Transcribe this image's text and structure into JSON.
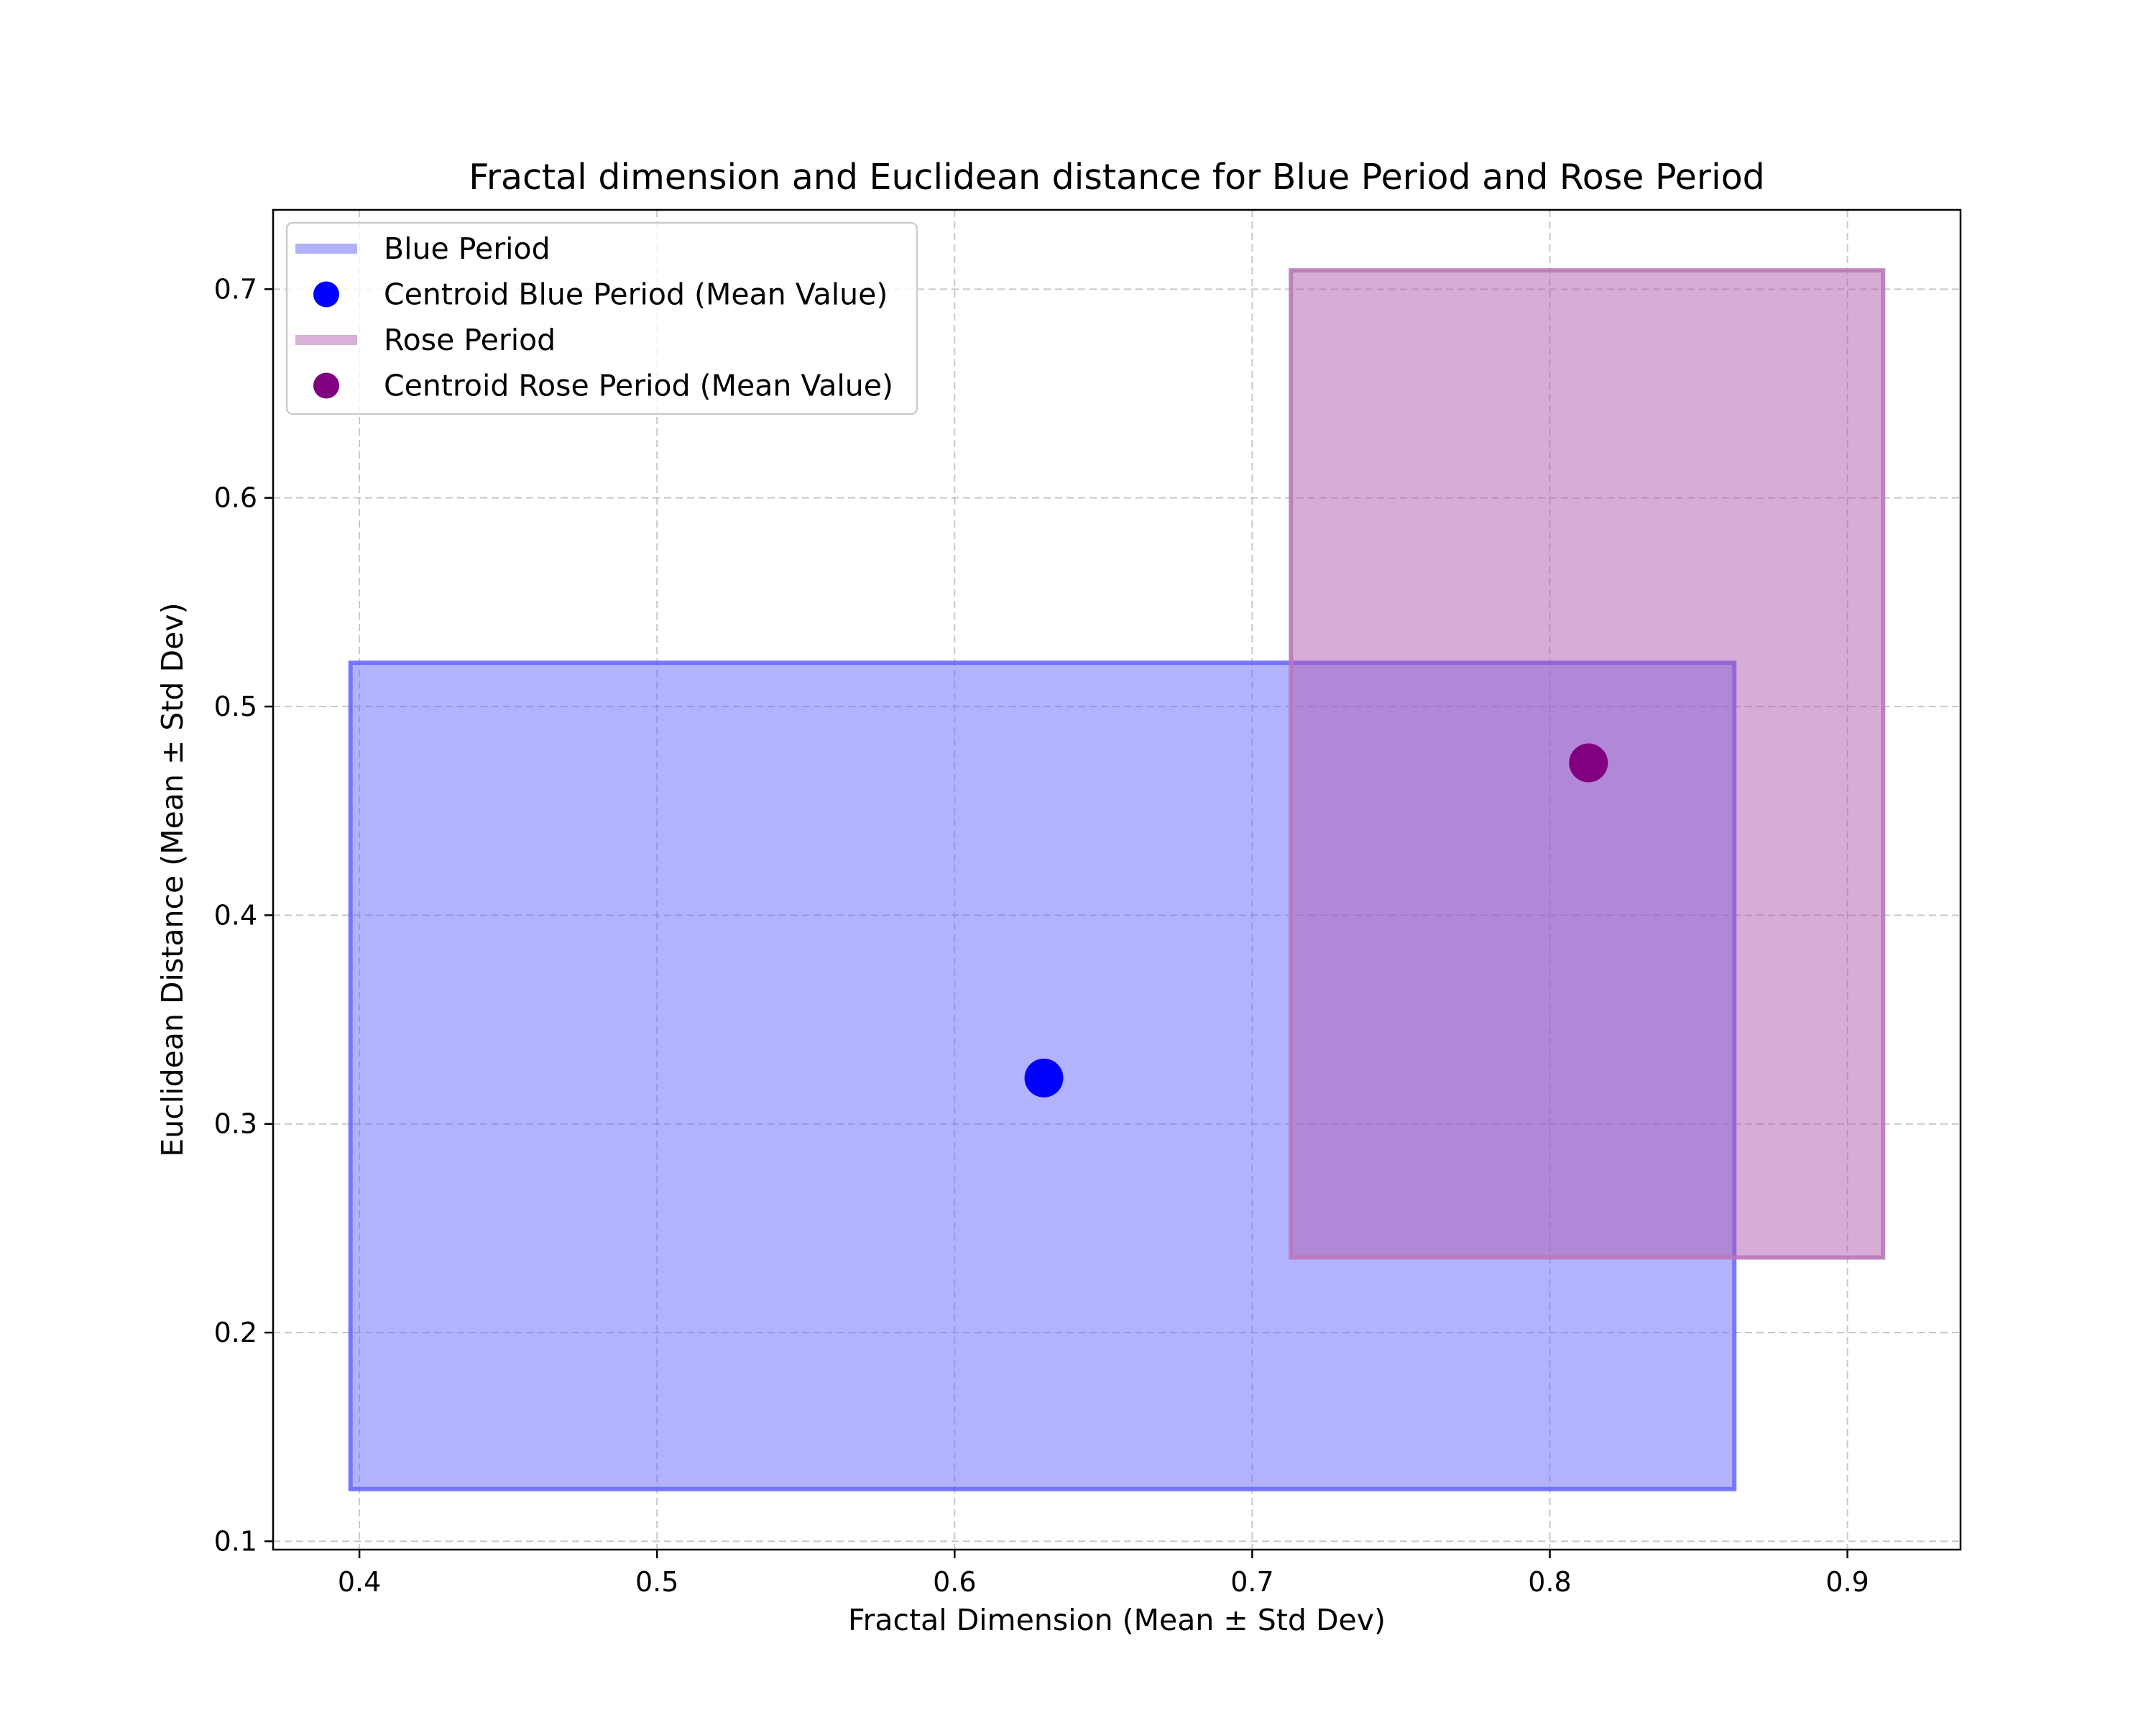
{
  "chart_data": {
    "type": "rectangle-scatter",
    "title": "Fractal dimension and Euclidean distance for Blue Period and Rose Period",
    "xlabel": "Fractal Dimension (Mean ± Std Dev)",
    "ylabel": "Euclidean Distance (Mean ± Std Dev)",
    "xlim": [
      0.371,
      0.938
    ],
    "ylim": [
      0.096,
      0.738
    ],
    "xticks": [
      0.4,
      0.5,
      0.6,
      0.7,
      0.8,
      0.9
    ],
    "xtick_labels": [
      "0.4",
      "0.5",
      "0.6",
      "0.7",
      "0.8",
      "0.9"
    ],
    "yticks": [
      0.1,
      0.2,
      0.3,
      0.4,
      0.5,
      0.6,
      0.7
    ],
    "ytick_labels": [
      "0.1",
      "0.2",
      "0.3",
      "0.4",
      "0.5",
      "0.6",
      "0.7"
    ],
    "grid": true,
    "legend_position": "upper-left",
    "series": [
      {
        "name": "Blue Period",
        "kind": "range-rectangle",
        "x_range": [
          0.397,
          0.862
        ],
        "y_range": [
          0.125,
          0.521
        ],
        "color": "#6666ff",
        "edge_color": "#6a6aff",
        "legend_color": "#b2b2fb"
      },
      {
        "name": "Centroid Blue Period (Mean Value)",
        "kind": "point",
        "x": 0.63,
        "y": 0.322,
        "color": "#0000ff"
      },
      {
        "name": "Rose Period",
        "kind": "range-rectangle",
        "x_range": [
          0.713,
          0.912
        ],
        "y_range": [
          0.236,
          0.709
        ],
        "color": "#b05cb0",
        "edge_color": "#b978b9",
        "legend_color": "#d8b0d8"
      },
      {
        "name": "Centroid Rose Period (Mean Value)",
        "kind": "point",
        "x": 0.813,
        "y": 0.473,
        "color": "#800080"
      }
    ]
  }
}
